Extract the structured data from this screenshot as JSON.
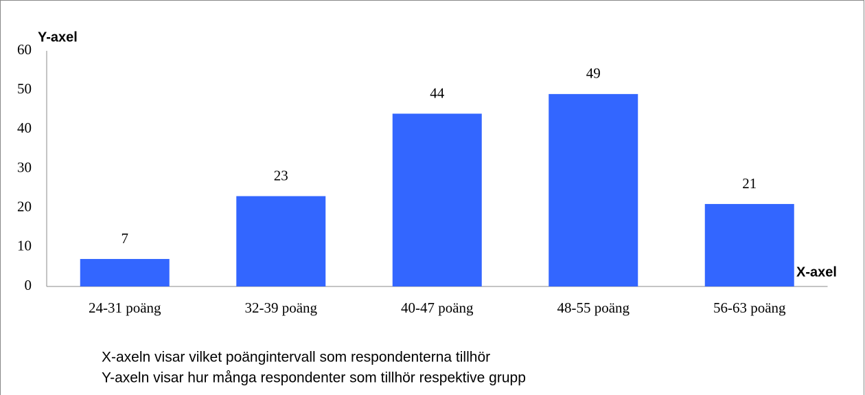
{
  "chart_data": {
    "type": "bar",
    "y_label": "Y-axel",
    "x_label": "X-axel",
    "categories": [
      "24-31 poäng",
      "32-39 poäng",
      "40-47 poäng",
      "48-55 poäng",
      "56-63 poäng"
    ],
    "values": [
      7,
      23,
      44,
      49,
      21
    ],
    "color": "#3366ff",
    "ylim": [
      0,
      60
    ],
    "yticks": [
      0,
      10,
      20,
      30,
      40,
      50,
      60
    ],
    "grid": false,
    "notes": [
      "X-axeln visar vilket poängintervall som respondenterna tillhör",
      "Y-axeln visar hur många respondenter som tillhör respektive grupp"
    ]
  }
}
